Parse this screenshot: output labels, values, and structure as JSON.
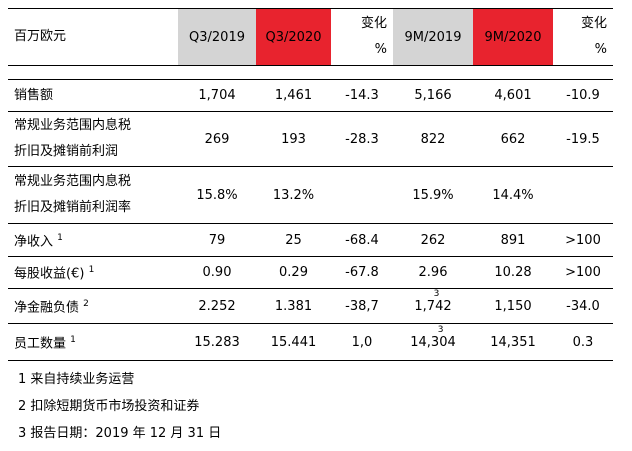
{
  "table": {
    "header": {
      "label": "百万欧元",
      "columns": [
        {
          "text": "Q3/2019",
          "fill": "#d4d4d4"
        },
        {
          "text": "Q3/2020",
          "fill": "#e8232e"
        },
        {
          "text": "变化",
          "unit": "%"
        },
        {
          "text": "9M/2019",
          "fill": "#d4d4d4"
        },
        {
          "text": "9M/2020",
          "fill": "#e8232e"
        },
        {
          "text": "变化",
          "unit": "%"
        }
      ]
    },
    "rows": [
      {
        "label": [
          "销售额"
        ],
        "cells": [
          "1,704",
          "1,461",
          "-14.3",
          "5,166",
          "4,601",
          "-10.9"
        ]
      },
      {
        "label": [
          "常规业务范围内息税",
          "折旧及摊销前利润"
        ],
        "cells": [
          "269",
          "193",
          "-28.3",
          "822",
          "662",
          "-19.5"
        ]
      },
      {
        "label": [
          "常规业务范围内息税",
          "折旧及摊销前利润率"
        ],
        "cells": [
          "15.8%",
          "13.2%",
          null,
          "15.9%",
          "14.4%",
          null
        ]
      },
      {
        "label": [
          "净收入"
        ],
        "note": "1",
        "cells": [
          "79",
          "25",
          "-68.4",
          "262",
          "891",
          ">100"
        ]
      },
      {
        "label": [
          "每股收益(€)"
        ],
        "note": "1",
        "cells": [
          "0.90",
          "0.29",
          "-67.8",
          "2.96",
          "10.28",
          ">100"
        ]
      },
      {
        "label": [
          "净金融负债"
        ],
        "note": "2",
        "cells": [
          "2.252",
          "1.381",
          "-38,7",
          {
            "text": "1,742",
            "note": "3"
          },
          "1,150",
          "-34.0"
        ]
      },
      {
        "label": [
          "员工数量"
        ],
        "note": "1",
        "cells": [
          "15.283",
          "15.441",
          "1,0",
          {
            "text": "14,304",
            "note": "3"
          },
          "14,351",
          "0.3"
        ]
      }
    ]
  },
  "footnotes": [
    "1 来自持续业务运营",
    "2 扣除短期货币市场投资和证券",
    "3 报告日期：2019 年 12 月 31 日"
  ]
}
